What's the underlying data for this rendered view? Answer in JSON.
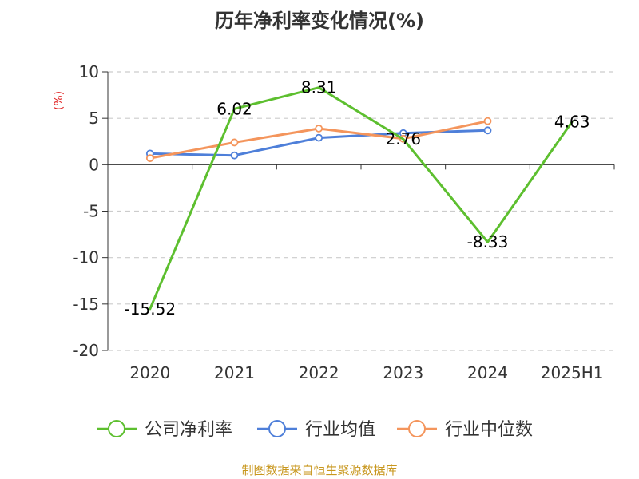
{
  "chart_data": {
    "type": "line",
    "title": "历年净利率变化情况(%)",
    "ylabel": "(%)",
    "xlabel": "",
    "categories": [
      "2020",
      "2021",
      "2022",
      "2023",
      "2024",
      "2025H1"
    ],
    "ylim": [
      -20,
      10
    ],
    "yticks": [
      10,
      5,
      0,
      -5,
      -10,
      -15,
      -20
    ],
    "grid": true,
    "legend_position": "bottom",
    "series": [
      {
        "name": "公司净利率",
        "color": "#5dbf2f",
        "values": [
          -15.52,
          6.02,
          8.31,
          2.76,
          -8.33,
          4.63
        ],
        "labels": [
          "-15.52",
          "6.02",
          "8.31",
          "2.76",
          "-8.33",
          "4.63"
        ],
        "show_markers": false
      },
      {
        "name": "行业均值",
        "color": "#4e7fd9",
        "values": [
          1.2,
          1.0,
          2.9,
          3.4,
          3.7,
          null
        ],
        "show_markers": true
      },
      {
        "name": "行业中位数",
        "color": "#f4955c",
        "values": [
          0.7,
          2.4,
          3.9,
          2.8,
          4.7,
          null
        ],
        "show_markers": true
      }
    ]
  },
  "source": {
    "text": "制图数据来自恒生聚源数据库",
    "color": "#c8971e"
  },
  "styles": {
    "ylabel_color": "#e02020",
    "axis_color": "#333333",
    "grid_color": "#cccccc"
  }
}
